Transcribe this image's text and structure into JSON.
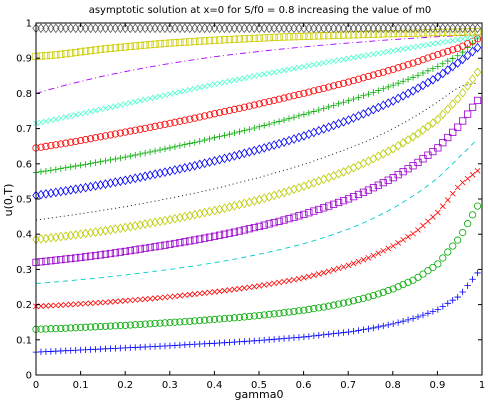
{
  "chart_data": {
    "type": "line",
    "title": "asymptotic solution at x=0 for S/f0 = 0.8 increasing the value of m0",
    "xlabel": "gamma0",
    "ylabel": "u(0,T)",
    "xlim": [
      0,
      1
    ],
    "ylim": [
      0,
      1
    ],
    "xticks": [
      "0",
      "0.1",
      "0.2",
      "0.3",
      "0.4",
      "0.5",
      "0.6",
      "0.7",
      "0.8",
      "0.9",
      "1"
    ],
    "yticks": [
      "0",
      "0.1",
      "0.2",
      "0.3",
      "0.4",
      "0.5",
      "0.6",
      "0.7",
      "0.8",
      "0.9",
      "1"
    ],
    "grid": false,
    "legend": "none",
    "x": [
      0,
      0.05,
      0.1,
      0.15,
      0.2,
      0.25,
      0.3,
      0.35,
      0.4,
      0.45,
      0.5,
      0.55,
      0.6,
      0.65,
      0.7,
      0.75,
      0.8,
      0.85,
      0.9,
      0.95,
      0.99
    ],
    "series": [
      {
        "color": "#0000ff",
        "marker": "plus",
        "values": [
          0.065,
          0.068,
          0.071,
          0.074,
          0.077,
          0.08,
          0.083,
          0.087,
          0.09,
          0.094,
          0.098,
          0.103,
          0.108,
          0.115,
          0.122,
          0.132,
          0.145,
          0.162,
          0.185,
          0.225,
          0.29
        ]
      },
      {
        "color": "#00aa00",
        "marker": "circle",
        "values": [
          0.13,
          0.132,
          0.135,
          0.138,
          0.141,
          0.145,
          0.149,
          0.153,
          0.158,
          0.163,
          0.169,
          0.176,
          0.184,
          0.194,
          0.207,
          0.223,
          0.244,
          0.272,
          0.314,
          0.39,
          0.48
        ]
      },
      {
        "color": "#ff0000",
        "marker": "x",
        "values": [
          0.195,
          0.198,
          0.202,
          0.206,
          0.211,
          0.216,
          0.222,
          0.229,
          0.236,
          0.244,
          0.253,
          0.264,
          0.276,
          0.292,
          0.311,
          0.335,
          0.366,
          0.405,
          0.46,
          0.54,
          0.58
        ]
      },
      {
        "color": "#00cccc",
        "marker": "dash",
        "values": [
          0.26,
          0.265,
          0.271,
          0.277,
          0.284,
          0.292,
          0.3,
          0.309,
          0.319,
          0.33,
          0.343,
          0.357,
          0.373,
          0.392,
          0.414,
          0.441,
          0.473,
          0.512,
          0.558,
          0.62,
          0.67
        ]
      },
      {
        "color": "#9900cc",
        "marker": "square",
        "values": [
          0.32,
          0.327,
          0.334,
          0.342,
          0.351,
          0.361,
          0.371,
          0.382,
          0.394,
          0.407,
          0.422,
          0.438,
          0.456,
          0.477,
          0.5,
          0.528,
          0.56,
          0.598,
          0.644,
          0.71,
          0.78
        ]
      },
      {
        "color": "#bbcc00",
        "marker": "diamond",
        "values": [
          0.385,
          0.392,
          0.4,
          0.409,
          0.419,
          0.43,
          0.441,
          0.454,
          0.467,
          0.482,
          0.498,
          0.516,
          0.536,
          0.558,
          0.582,
          0.61,
          0.642,
          0.68,
          0.725,
          0.79,
          0.86
        ]
      },
      {
        "color": "#000000",
        "marker": "dot",
        "values": [
          0.44,
          0.449,
          0.458,
          0.468,
          0.478,
          0.49,
          0.502,
          0.515,
          0.529,
          0.545,
          0.561,
          0.579,
          0.598,
          0.62,
          0.643,
          0.669,
          0.699,
          0.734,
          0.775,
          0.82,
          0.83
        ]
      },
      {
        "color": "#0000ff",
        "marker": "diamond",
        "values": [
          0.51,
          0.52,
          0.53,
          0.541,
          0.553,
          0.566,
          0.579,
          0.593,
          0.608,
          0.624,
          0.641,
          0.659,
          0.679,
          0.701,
          0.724,
          0.75,
          0.778,
          0.81,
          0.846,
          0.89,
          0.93
        ]
      },
      {
        "color": "#00aa00",
        "marker": "plus",
        "values": [
          0.575,
          0.585,
          0.596,
          0.607,
          0.619,
          0.632,
          0.645,
          0.659,
          0.674,
          0.689,
          0.705,
          0.722,
          0.74,
          0.759,
          0.779,
          0.8,
          0.823,
          0.848,
          0.876,
          0.91,
          0.955
        ]
      },
      {
        "color": "#ff0000",
        "marker": "circle",
        "values": [
          0.645,
          0.655,
          0.666,
          0.678,
          0.69,
          0.702,
          0.715,
          0.728,
          0.742,
          0.756,
          0.77,
          0.785,
          0.8,
          0.816,
          0.832,
          0.85,
          0.868,
          0.888,
          0.91,
          0.93,
          0.955
        ]
      },
      {
        "color": "#44ffcc",
        "marker": "x",
        "values": [
          0.715,
          0.728,
          0.742,
          0.756,
          0.77,
          0.784,
          0.798,
          0.812,
          0.826,
          0.839,
          0.852,
          0.864,
          0.876,
          0.888,
          0.899,
          0.91,
          0.921,
          0.932,
          0.943,
          0.953,
          0.962
        ]
      },
      {
        "color": "#aa00ff",
        "marker": "dashdot",
        "values": [
          0.8,
          0.818,
          0.834,
          0.849,
          0.862,
          0.874,
          0.885,
          0.895,
          0.904,
          0.912,
          0.919,
          0.926,
          0.932,
          0.938,
          0.943,
          0.948,
          0.953,
          0.957,
          0.961,
          0.964,
          0.967
        ]
      },
      {
        "color": "#cccc00",
        "marker": "square",
        "values": [
          0.905,
          0.91,
          0.918,
          0.926,
          0.932,
          0.938,
          0.943,
          0.947,
          0.951,
          0.954,
          0.957,
          0.96,
          0.962,
          0.964,
          0.966,
          0.968,
          0.97,
          0.971,
          0.973,
          0.974,
          0.975
        ]
      },
      {
        "color": "#555555",
        "marker": "diamond",
        "values": [
          0.985,
          0.985,
          0.985,
          0.985,
          0.985,
          0.985,
          0.985,
          0.985,
          0.985,
          0.985,
          0.985,
          0.985,
          0.985,
          0.985,
          0.985,
          0.985,
          0.985,
          0.985,
          0.985,
          0.985,
          0.985
        ]
      }
    ]
  }
}
